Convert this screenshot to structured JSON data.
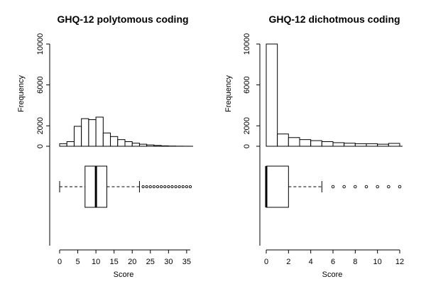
{
  "chart_data": [
    {
      "type": "histogram+boxplot",
      "title": "GHQ-12 polytomous coding",
      "xlabel": "Score",
      "ylabel": "Frequency",
      "xlim": [
        0,
        36
      ],
      "ylim": [
        0,
        10000
      ],
      "x_ticks": [
        "0",
        "5",
        "10",
        "15",
        "20",
        "25",
        "30",
        "35"
      ],
      "y_ticks": [
        "0",
        "2000",
        "6000",
        "10000"
      ],
      "histogram": {
        "bin_edges": [
          0,
          2,
          4,
          6,
          8,
          10,
          12,
          14,
          16,
          18,
          20,
          22,
          24,
          26,
          28,
          30,
          32,
          34,
          36
        ],
        "counts": [
          250,
          450,
          1950,
          2700,
          2600,
          2850,
          1300,
          950,
          650,
          450,
          300,
          200,
          130,
          80,
          40,
          20,
          10,
          5
        ]
      },
      "boxplot": {
        "whisker_low": 0,
        "q1": 7,
        "median": 10,
        "q3": 13,
        "whisker_high": 22,
        "outliers": [
          23,
          24,
          25,
          26,
          27,
          28,
          29,
          30,
          31,
          32,
          33,
          34,
          35,
          36
        ]
      }
    },
    {
      "type": "histogram+boxplot",
      "title": "GHQ-12 dichotmous coding",
      "xlabel": "Score",
      "ylabel": "Frequency",
      "xlim": [
        0,
        12
      ],
      "ylim": [
        0,
        10000
      ],
      "x_ticks": [
        "0",
        "2",
        "4",
        "6",
        "8",
        "10",
        "12"
      ],
      "y_ticks": [
        "0",
        "2000",
        "6000",
        "10000"
      ],
      "histogram": {
        "bin_edges": [
          0,
          1,
          2,
          3,
          4,
          5,
          6,
          7,
          8,
          9,
          10,
          11,
          12
        ],
        "counts": [
          10000,
          1200,
          850,
          650,
          550,
          450,
          350,
          300,
          250,
          250,
          200,
          280
        ]
      },
      "boxplot": {
        "whisker_low": 0,
        "q1": 0,
        "median": 0,
        "q3": 2,
        "whisker_high": 5,
        "outliers": [
          6,
          7,
          8,
          9,
          10,
          11,
          12
        ]
      }
    }
  ]
}
